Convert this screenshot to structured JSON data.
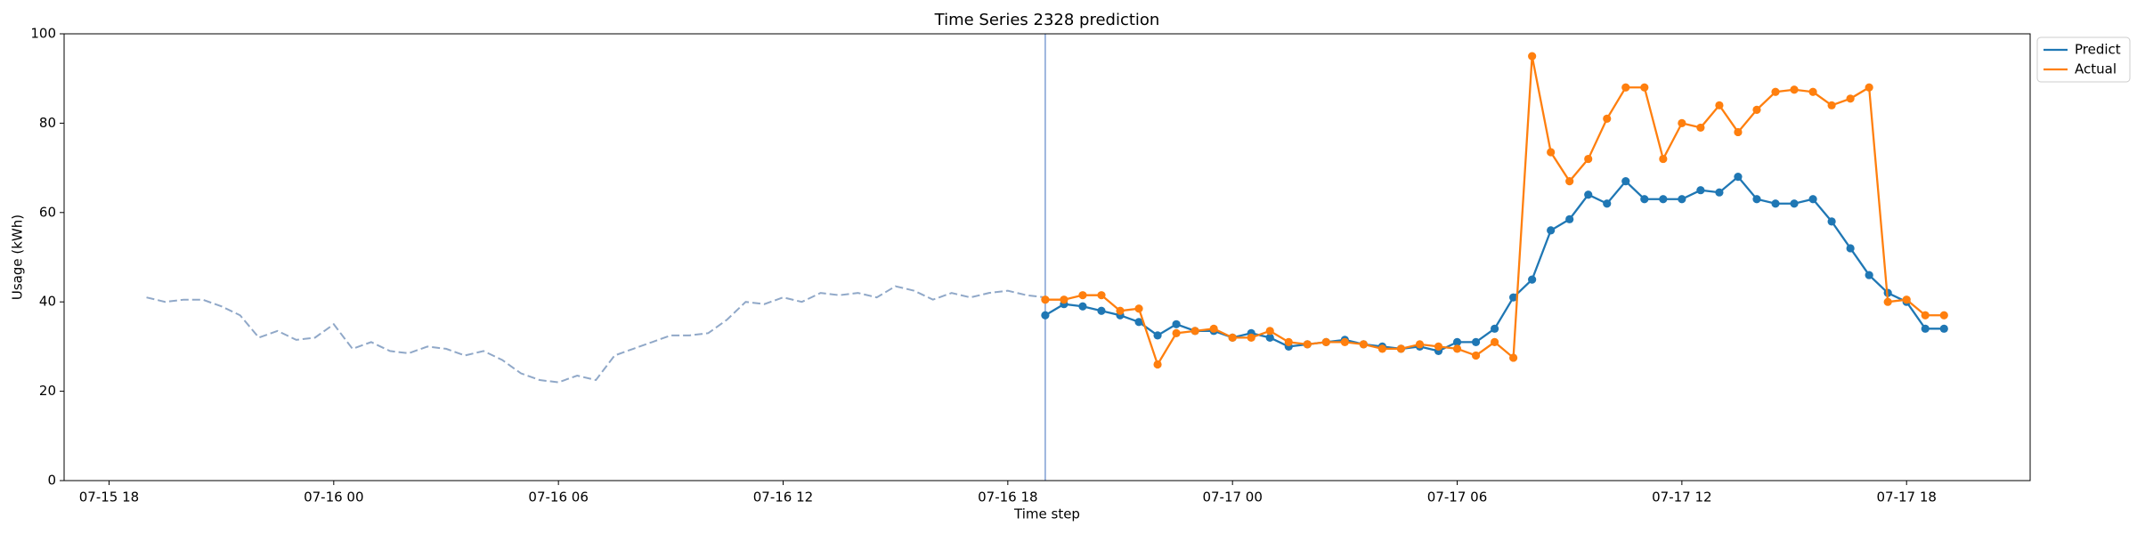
{
  "chart_data": {
    "type": "line",
    "title": "Time Series 2328 prediction",
    "x_label": "Time step",
    "y_label": "Usage (kWh)",
    "xlim": [
      -1.2,
      51.3
    ],
    "ylim": [
      0,
      100
    ],
    "xticks": [
      {
        "value": 0,
        "label": "07-15 18"
      },
      {
        "value": 6,
        "label": "07-16 00"
      },
      {
        "value": 12,
        "label": "07-16 06"
      },
      {
        "value": 18,
        "label": "07-16 12"
      },
      {
        "value": 24,
        "label": "07-16 18"
      },
      {
        "value": 30,
        "label": "07-17 00"
      },
      {
        "value": 36,
        "label": "07-17 06"
      },
      {
        "value": 42,
        "label": "07-17 12"
      },
      {
        "value": 48,
        "label": "07-17 18"
      }
    ],
    "yticks": [
      0,
      20,
      40,
      60,
      80,
      100
    ],
    "vline": 25,
    "vline_color": "#7f9fd4",
    "legend": "outside-upper-right",
    "history": {
      "color": "#90a8c8",
      "dashed": true,
      "x": [
        1,
        1.5,
        2,
        2.5,
        3,
        3.5,
        4,
        4.5,
        5,
        5.5,
        6,
        6.5,
        7,
        7.5,
        8,
        8.5,
        9,
        9.5,
        10,
        10.5,
        11,
        11.5,
        12,
        12.5,
        13,
        13.5,
        14,
        14.5,
        15,
        15.5,
        16,
        16.5,
        17,
        17.5,
        18,
        18.5,
        19,
        19.5,
        20,
        20.5,
        21,
        21.5,
        22,
        22.5,
        23,
        23.5,
        24,
        24.5,
        25
      ],
      "values": [
        41,
        40,
        40.5,
        40.5,
        39,
        37,
        32,
        33.5,
        31.5,
        32,
        35,
        29.5,
        31,
        29,
        28.5,
        30,
        29.5,
        28,
        29,
        27,
        24,
        22.5,
        22,
        23.5,
        22.5,
        28,
        29.5,
        31,
        32.5,
        32.5,
        33,
        36,
        40,
        39.5,
        41,
        40,
        42,
        41.5,
        42,
        41,
        43.5,
        42.5,
        40.5,
        42,
        41,
        42,
        42.5,
        41.5,
        41
      ]
    },
    "x": [
      25,
      25.5,
      26,
      26.5,
      27,
      27.5,
      28,
      28.5,
      29,
      29.5,
      30,
      30.5,
      31,
      31.5,
      32,
      32.5,
      33,
      33.5,
      34,
      34.5,
      35,
      35.5,
      36,
      36.5,
      37,
      37.5,
      38,
      38.5,
      39,
      39.5,
      40,
      40.5,
      41,
      41.5,
      42,
      42.5,
      43,
      43.5,
      44,
      44.5,
      45,
      45.5,
      46,
      46.5,
      47,
      47.5,
      48,
      48.5,
      49
    ],
    "series": [
      {
        "name": "Predict",
        "color": "#1f77b4",
        "values": [
          37,
          39.5,
          39,
          38,
          37,
          35.5,
          32.5,
          35,
          33.5,
          33.5,
          32,
          33,
          32,
          30,
          30.5,
          31,
          31.5,
          30.5,
          30,
          29.5,
          30,
          29,
          31,
          31,
          34,
          41,
          45,
          56,
          58.5,
          64,
          62,
          67,
          63,
          63,
          63,
          65,
          64.5,
          68,
          63,
          62,
          62,
          63,
          58,
          52,
          46,
          42,
          40,
          34,
          34
        ]
      },
      {
        "name": "Actual",
        "color": "#ff7f0e",
        "values": [
          40.5,
          40.5,
          41.5,
          41.5,
          38,
          38.5,
          26,
          33,
          33.5,
          34,
          32,
          32,
          33.5,
          31,
          30.5,
          31,
          31,
          30.5,
          29.5,
          29.5,
          30.5,
          30,
          29.5,
          28,
          31,
          27.5,
          95,
          73.5,
          67,
          72,
          81,
          88,
          88,
          72,
          80,
          79,
          84,
          78,
          83,
          87,
          87.5,
          87,
          84,
          85.5,
          88,
          40,
          40.5,
          37,
          37
        ]
      }
    ]
  }
}
